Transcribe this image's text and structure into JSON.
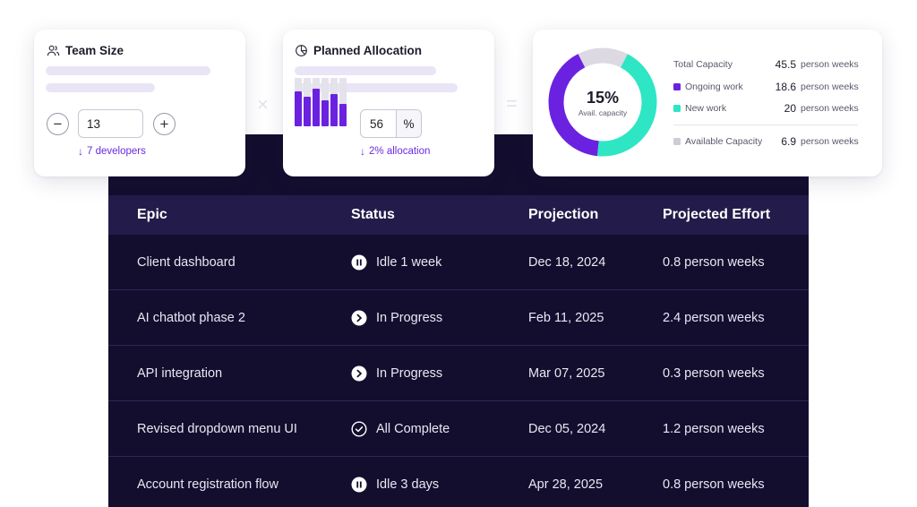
{
  "team_size": {
    "title": "Team Size",
    "value": "13",
    "minus": "−",
    "plus": "+",
    "hint": "7 developers"
  },
  "planned_allocation": {
    "title": "Planned Allocation",
    "value": "56",
    "unit": "%",
    "hint": "2% allocation",
    "bar_levels": [
      0.92,
      0.78,
      1.0,
      0.68,
      0.85,
      0.6
    ]
  },
  "capacity": {
    "center_value": "15%",
    "center_label": "Avail. capacity",
    "colors": {
      "ongoing": "#6b22e0",
      "new": "#2ee6c4",
      "available": "#dcd9e3"
    },
    "legend": [
      {
        "label": "Total Capacity",
        "value": "45.5",
        "unit": "person weeks",
        "swatch": ""
      },
      {
        "label": "Ongoing work",
        "value": "18.6",
        "unit": "person weeks",
        "swatch": "#6b22e0"
      },
      {
        "label": "New work",
        "value": "20",
        "unit": "person weeks",
        "swatch": "#2ee6c4"
      },
      {
        "label": "Available Capacity",
        "value": "6.9",
        "unit": "person weeks",
        "swatch": "#cfcbd8"
      }
    ]
  },
  "table": {
    "headers": [
      "Epic",
      "Status",
      "Projection",
      "Projected Effort"
    ],
    "rows": [
      {
        "epic": "Client dashboard",
        "status": "Idle 1 week",
        "status_icon": "pause-icon",
        "projection": "Dec 18, 2024",
        "effort": "0.8 person weeks"
      },
      {
        "epic": "AI chatbot phase 2",
        "status": "In Progress",
        "status_icon": "play-icon",
        "projection": "Feb 11, 2025",
        "effort": "2.4 person weeks"
      },
      {
        "epic": "API integration",
        "status": "In Progress",
        "status_icon": "play-icon",
        "projection": "Mar 07, 2025",
        "effort": "0.3 person weeks"
      },
      {
        "epic": "Revised dropdown menu UI",
        "status": "All Complete",
        "status_icon": "check-circle-icon",
        "projection": "Dec 05, 2024",
        "effort": "1.2 person weeks"
      },
      {
        "epic": "Account registration flow",
        "status": "Idle 3 days",
        "status_icon": "pause-icon",
        "projection": "Apr 28, 2025",
        "effort": "0.8 person weeks"
      }
    ]
  }
}
